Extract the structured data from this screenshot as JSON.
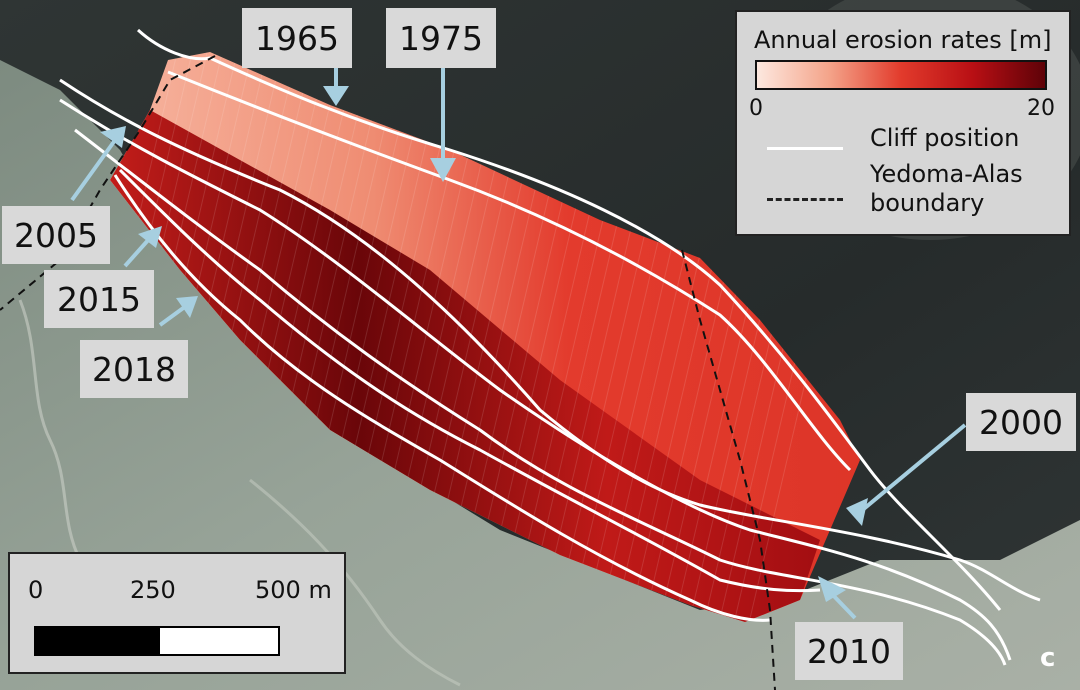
{
  "years": {
    "y1965": "1965",
    "y1975": "1975",
    "y2005": "2005",
    "y2015": "2015",
    "y2018": "2018",
    "y2000": "2000",
    "y2010": "2010"
  },
  "legend": {
    "title": "Annual erosion rates [m]",
    "scale_min": "0",
    "scale_max": "20",
    "cliff_label": "Cliff position",
    "boundary_label": "Yedoma-Alas boundary"
  },
  "scalebar": {
    "tick_0": "0",
    "tick_250": "250",
    "tick_500": "500 m"
  },
  "panel_letter": "c",
  "colors": {
    "sea": "#2b3130",
    "land": "#8e9a90",
    "erosion_low": "#fde8df",
    "erosion_high": "#5e0208",
    "arrow": "#a7cfe0",
    "label_box": "#d9d9d9"
  }
}
